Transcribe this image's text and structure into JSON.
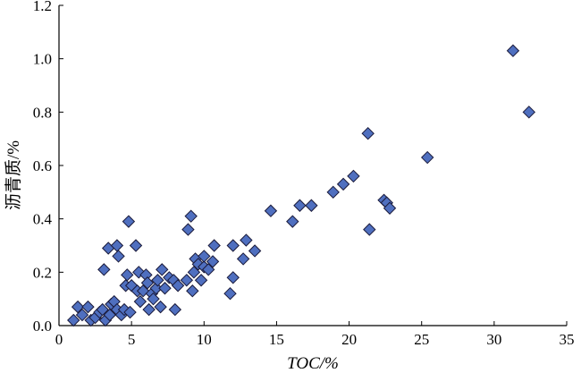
{
  "chart_data": {
    "type": "scatter",
    "title": "",
    "xlabel": "TOC/%",
    "ylabel": "沥青质/%",
    "xlim": [
      0,
      35
    ],
    "ylim": [
      0,
      1.2
    ],
    "x_ticks": [
      "0",
      "5",
      "10",
      "15",
      "20",
      "25",
      "30",
      "35"
    ],
    "y_ticks": [
      "0.0",
      "0.2",
      "0.4",
      "0.6",
      "0.8",
      "1.0",
      "1.2"
    ],
    "grid": false,
    "marker": "diamond",
    "marker_color": "#4f6fbf",
    "series": [
      {
        "points": [
          [
            1.0,
            0.02
          ],
          [
            1.3,
            0.07
          ],
          [
            1.6,
            0.04
          ],
          [
            2.0,
            0.07
          ],
          [
            2.2,
            0.02
          ],
          [
            2.5,
            0.03
          ],
          [
            2.8,
            0.05
          ],
          [
            3.0,
            0.06
          ],
          [
            3.1,
            0.21
          ],
          [
            3.2,
            0.02
          ],
          [
            3.4,
            0.29
          ],
          [
            3.5,
            0.04
          ],
          [
            3.6,
            0.08
          ],
          [
            3.8,
            0.09
          ],
          [
            4.0,
            0.06
          ],
          [
            4.0,
            0.3
          ],
          [
            4.1,
            0.26
          ],
          [
            4.3,
            0.04
          ],
          [
            4.5,
            0.06
          ],
          [
            4.6,
            0.15
          ],
          [
            4.7,
            0.19
          ],
          [
            4.8,
            0.39
          ],
          [
            4.9,
            0.05
          ],
          [
            5.0,
            0.15
          ],
          [
            5.3,
            0.3
          ],
          [
            5.4,
            0.13
          ],
          [
            5.5,
            0.2
          ],
          [
            5.6,
            0.09
          ],
          [
            5.8,
            0.13
          ],
          [
            6.0,
            0.19
          ],
          [
            6.1,
            0.16
          ],
          [
            6.2,
            0.06
          ],
          [
            6.4,
            0.12
          ],
          [
            6.5,
            0.1
          ],
          [
            6.7,
            0.14
          ],
          [
            6.8,
            0.17
          ],
          [
            7.0,
            0.07
          ],
          [
            7.1,
            0.21
          ],
          [
            7.3,
            0.14
          ],
          [
            7.6,
            0.18
          ],
          [
            7.9,
            0.17
          ],
          [
            8.0,
            0.06
          ],
          [
            8.2,
            0.15
          ],
          [
            8.8,
            0.17
          ],
          [
            8.9,
            0.36
          ],
          [
            9.1,
            0.41
          ],
          [
            9.2,
            0.13
          ],
          [
            9.3,
            0.2
          ],
          [
            9.4,
            0.25
          ],
          [
            9.6,
            0.23
          ],
          [
            9.8,
            0.17
          ],
          [
            10.0,
            0.22
          ],
          [
            10.0,
            0.26
          ],
          [
            10.3,
            0.21
          ],
          [
            10.6,
            0.24
          ],
          [
            10.7,
            0.3
          ],
          [
            11.8,
            0.12
          ],
          [
            12.0,
            0.18
          ],
          [
            12.0,
            0.3
          ],
          [
            12.7,
            0.25
          ],
          [
            12.9,
            0.32
          ],
          [
            13.5,
            0.28
          ],
          [
            14.6,
            0.43
          ],
          [
            16.1,
            0.39
          ],
          [
            16.6,
            0.45
          ],
          [
            17.4,
            0.45
          ],
          [
            18.9,
            0.5
          ],
          [
            19.6,
            0.53
          ],
          [
            20.3,
            0.56
          ],
          [
            21.3,
            0.72
          ],
          [
            21.4,
            0.36
          ],
          [
            22.4,
            0.47
          ],
          [
            22.6,
            0.46
          ],
          [
            22.8,
            0.44
          ],
          [
            25.4,
            0.63
          ],
          [
            31.3,
            1.03
          ],
          [
            32.4,
            0.8
          ]
        ]
      }
    ]
  }
}
